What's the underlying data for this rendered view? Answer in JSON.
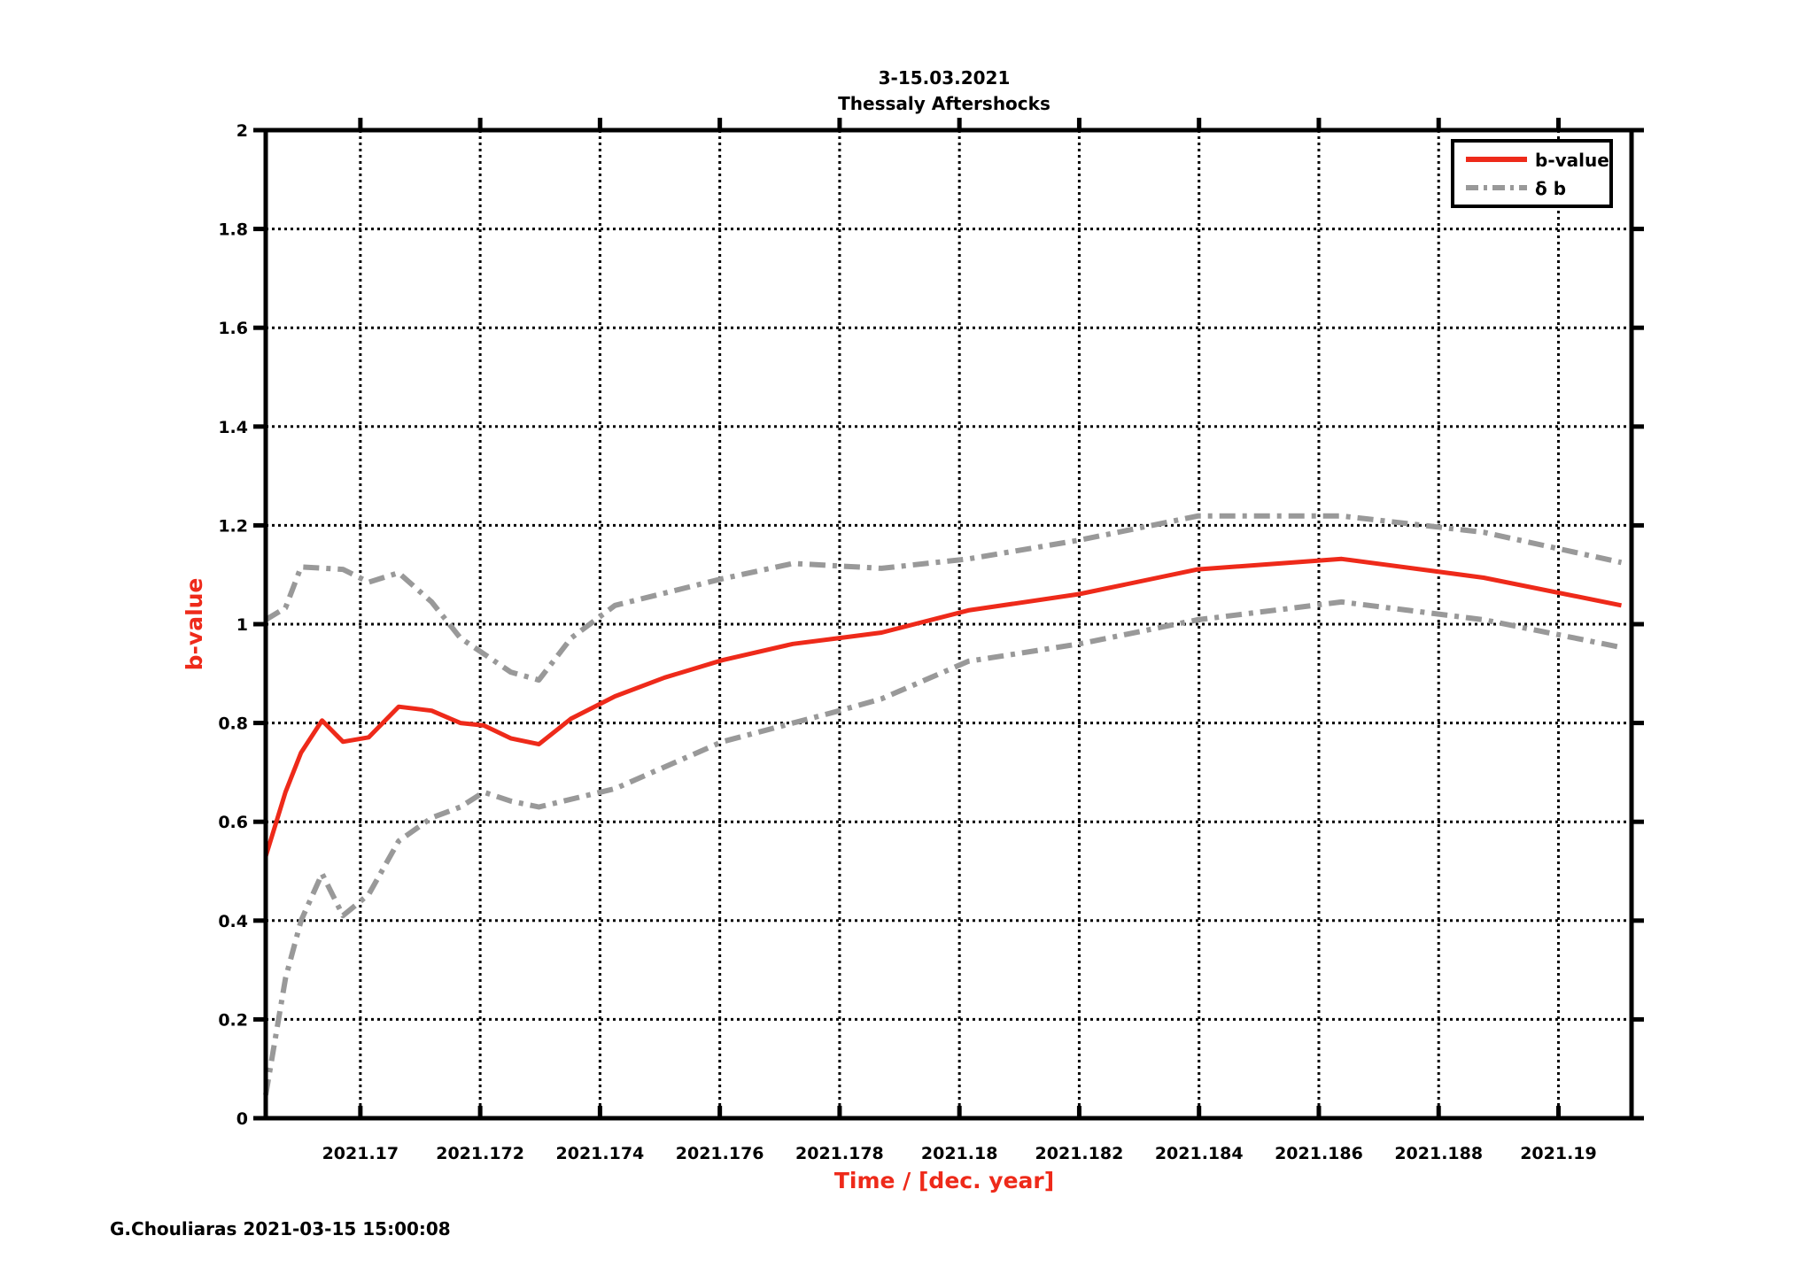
{
  "chart_data": {
    "type": "line",
    "title": [
      "3-15.03.2021",
      "Thessaly Aftershocks"
    ],
    "xlabel": "Time / [dec. year]",
    "ylabel": "b-value",
    "xlim": [
      2021.16842,
      2021.19122
    ],
    "ylim": [
      0,
      2
    ],
    "xticks": [
      2021.17,
      2021.172,
      2021.174,
      2021.176,
      2021.178,
      2021.18,
      2021.182,
      2021.184,
      2021.186,
      2021.188,
      2021.19
    ],
    "xtick_labels": [
      "2021.17",
      "2021.172",
      "2021.174",
      "2021.176",
      "2021.178",
      "2021.18",
      "2021.182",
      "2021.184",
      "2021.186",
      "2021.188",
      "2021.19"
    ],
    "yticks": [
      0,
      0.2,
      0.4,
      0.6,
      0.8,
      1,
      1.2,
      1.4,
      1.6,
      1.8,
      2
    ],
    "ytick_labels": [
      "0",
      "0.2",
      "0.4",
      "0.6",
      "0.8",
      "1",
      "1.2",
      "1.4",
      "1.6",
      "1.8",
      "2"
    ],
    "grid": true,
    "legend_position": "top-right",
    "colors": {
      "bvalue": "#ee2a1a",
      "delta": "#999999",
      "xlabel": "#ee2a1a",
      "ylabel": "#ee2a1a"
    },
    "series": [
      {
        "name": "b-value",
        "style": "solid",
        "x": [
          2021.16842,
          2021.16875,
          2021.16901,
          2021.16936,
          2021.16971,
          2021.17014,
          2021.17064,
          2021.17119,
          2021.17167,
          2021.17206,
          2021.17251,
          2021.17298,
          2021.17352,
          2021.17425,
          2021.17508,
          2021.17604,
          2021.17722,
          2021.178,
          2021.1787,
          2021.18015,
          2021.182,
          2021.18398,
          2021.18638,
          2021.18875,
          2021.19105
        ],
        "y": [
          0.53,
          0.66,
          0.74,
          0.805,
          0.762,
          0.771,
          0.833,
          0.825,
          0.8,
          0.795,
          0.769,
          0.757,
          0.809,
          0.854,
          0.892,
          0.927,
          0.96,
          0.972,
          0.983,
          1.028,
          1.061,
          1.111,
          1.132,
          1.094,
          1.038
        ]
      },
      {
        "name": "δ b",
        "style": "dashdot",
        "x": [
          2021.16842,
          2021.16875,
          2021.16901,
          2021.16971,
          2021.17014,
          2021.17064,
          2021.17119,
          2021.17167,
          2021.17251,
          2021.17298,
          2021.17352,
          2021.17425,
          2021.17604,
          2021.17722,
          2021.1787,
          2021.18015,
          2021.182,
          2021.18398,
          2021.18638,
          2021.18875,
          2021.19105
        ],
        "y": [
          1.009,
          1.033,
          1.116,
          1.111,
          1.085,
          1.104,
          1.045,
          0.972,
          0.903,
          0.887,
          0.972,
          1.038,
          1.092,
          1.123,
          1.113,
          1.132,
          1.17,
          1.219,
          1.219,
          1.186,
          1.125
        ]
      },
      {
        "name": "δ b lower",
        "style": "dashdot",
        "x": [
          2021.16842,
          2021.16875,
          2021.16901,
          2021.16936,
          2021.16971,
          2021.17014,
          2021.17064,
          2021.17119,
          2021.17167,
          2021.17206,
          2021.17251,
          2021.17298,
          2021.17425,
          2021.17604,
          2021.178,
          2021.1787,
          2021.18015,
          2021.182,
          2021.18398,
          2021.18638,
          2021.18875,
          2021.19105
        ],
        "y": [
          0.047,
          0.283,
          0.4,
          0.495,
          0.41,
          0.453,
          0.561,
          0.608,
          0.63,
          0.66,
          0.642,
          0.63,
          0.667,
          0.762,
          0.825,
          0.849,
          0.925,
          0.96,
          1.009,
          1.045,
          1.009,
          0.953
        ]
      }
    ],
    "legend": [
      "b-value",
      "δ b"
    ]
  },
  "footer": "G.Chouliaras 2021-03-15 15:00:08"
}
